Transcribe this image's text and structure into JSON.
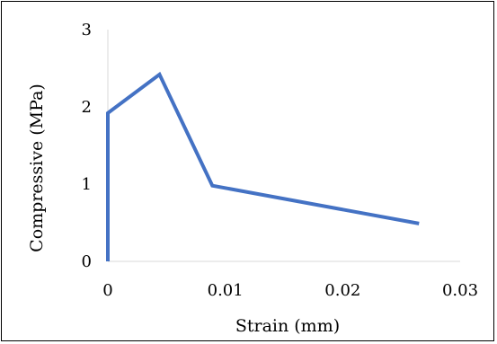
{
  "chart_data": {
    "type": "line",
    "title": "",
    "xlabel": "Strain (mm)",
    "ylabel": "Compressive (MPa)",
    "xlim": [
      0,
      0.03
    ],
    "ylim": [
      0,
      3
    ],
    "x_ticks": [
      "0",
      "0.01",
      "0.02",
      "0.03"
    ],
    "y_ticks": [
      "0",
      "1",
      "2",
      "3"
    ],
    "grid": false,
    "legend": "none",
    "series": [
      {
        "color": "#4472C4",
        "x": [
          0,
          0,
          0.0044,
          0.0089,
          0.0265
        ],
        "y": [
          0,
          1.92,
          2.42,
          0.98,
          0.49
        ]
      }
    ]
  }
}
